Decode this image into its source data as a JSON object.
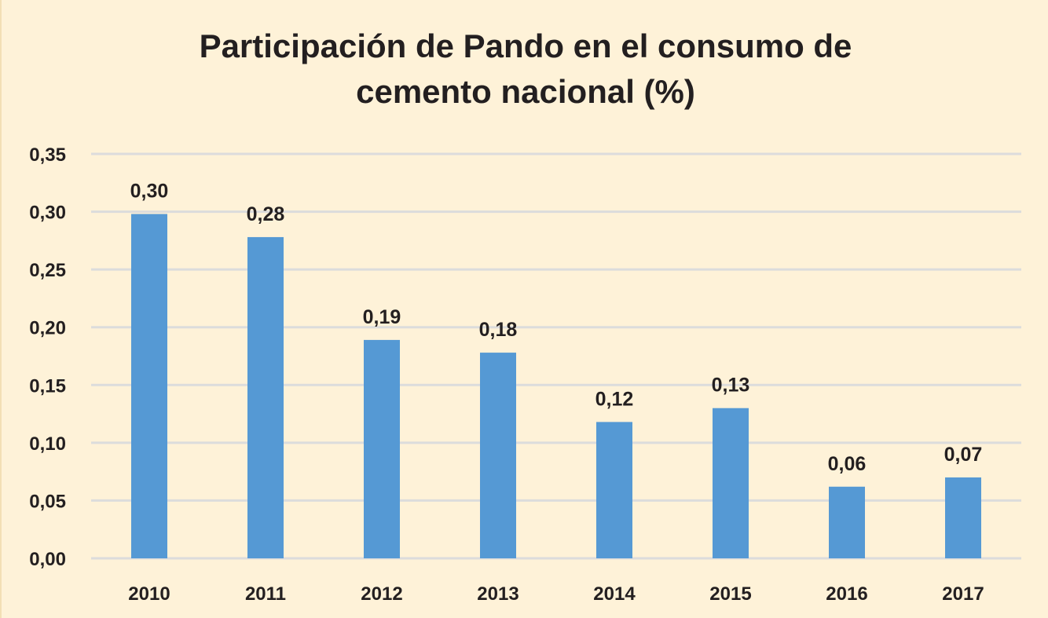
{
  "chart_data": {
    "type": "bar",
    "title_lines": [
      "Participación de Pando en el consumo de",
      "cemento nacional (%)"
    ],
    "categories": [
      "2010",
      "2011",
      "2012",
      "2013",
      "2014",
      "2015",
      "2016",
      "2017"
    ],
    "values": [
      0.298,
      0.278,
      0.189,
      0.178,
      0.118,
      0.13,
      0.062,
      0.07
    ],
    "data_labels": [
      "0,30",
      "0,28",
      "0,19",
      "0,18",
      "0,12",
      "0,13",
      "0,06",
      "0,07"
    ],
    "yticks": [
      0,
      0.05,
      0.1,
      0.15,
      0.2,
      0.25,
      0.3,
      0.35
    ],
    "ytick_labels": [
      "0,00",
      "0,05",
      "0,10",
      "0,15",
      "0,20",
      "0,25",
      "0,30",
      "0,35"
    ],
    "ylim": [
      0,
      0.35
    ],
    "xlabel": "",
    "ylabel": "",
    "grid": true,
    "legend": "none",
    "colors": {
      "bar": "#5599d4",
      "grid": "#dcdcdc",
      "background": "#fef2d8",
      "text": "#231f20"
    }
  }
}
